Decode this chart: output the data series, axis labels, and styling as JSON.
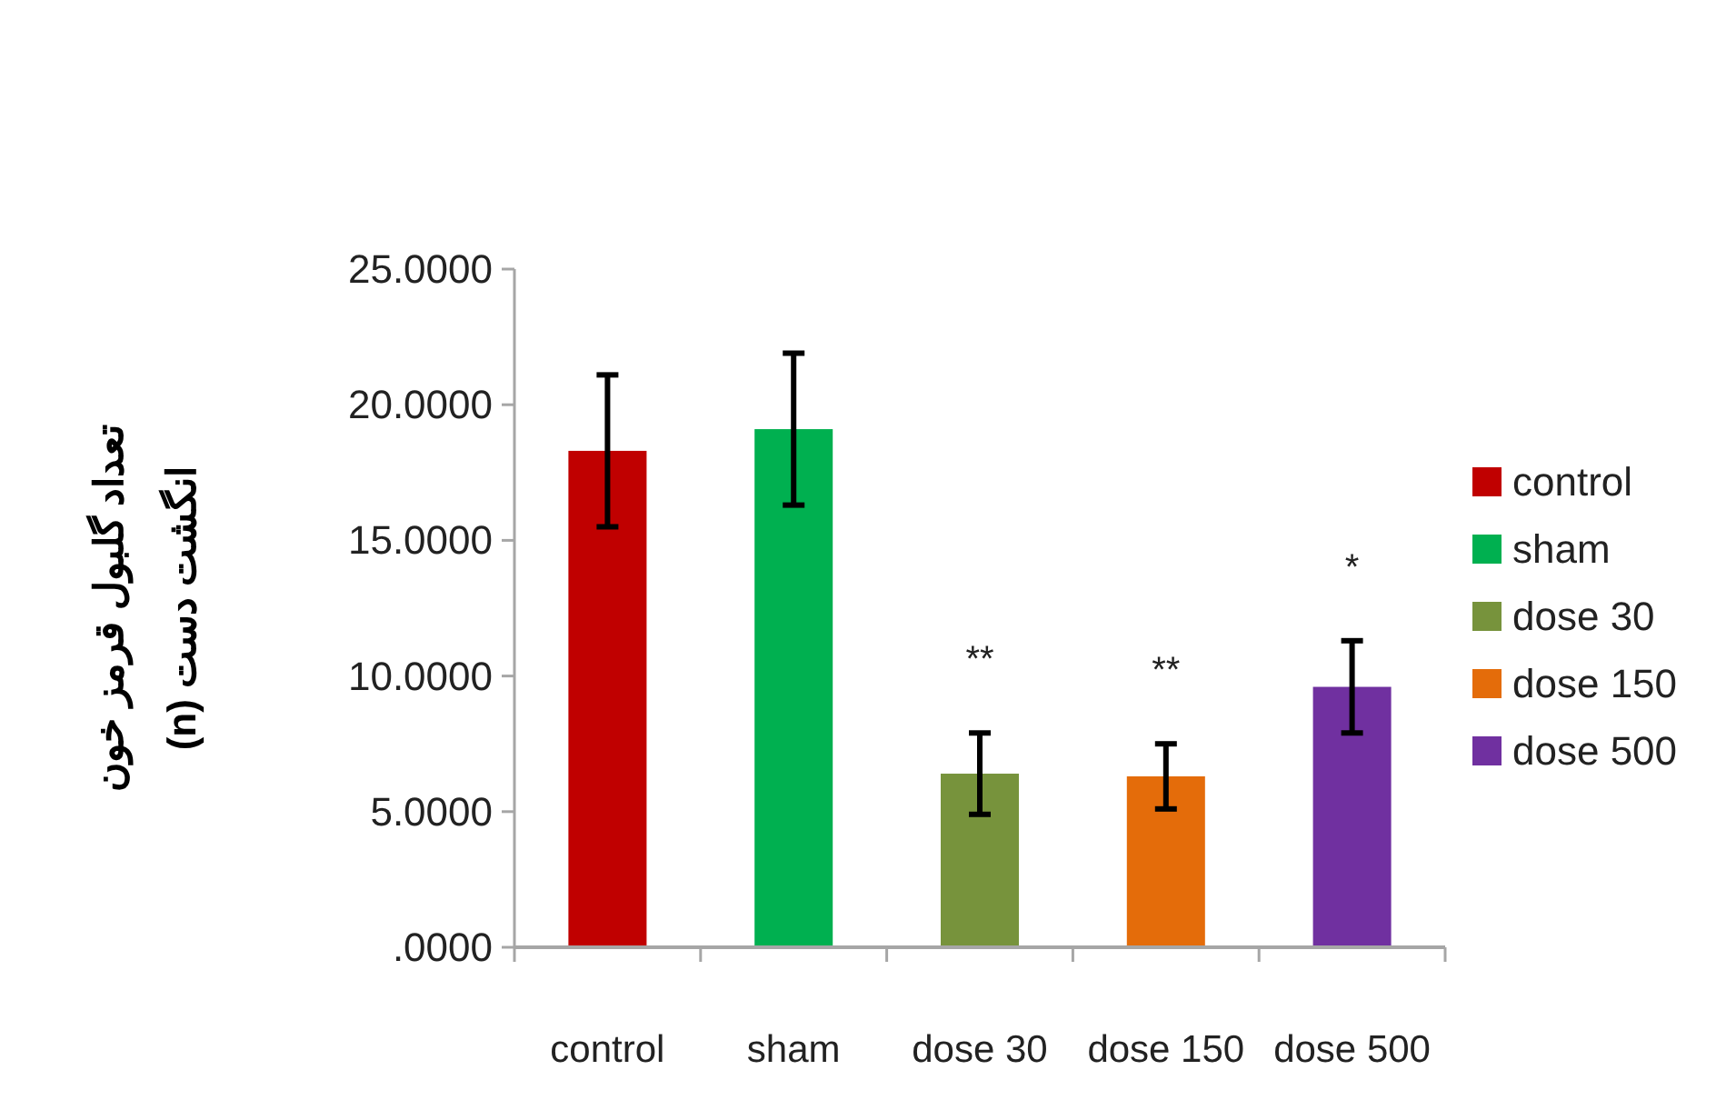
{
  "chart_data": {
    "type": "bar",
    "ylabel": "تعداد گلبول قرمز خون\nانگشت دست (n)",
    "categories": [
      "control",
      "sham",
      "dose 30",
      "dose 150",
      "dose 500"
    ],
    "series": [
      {
        "name": "control",
        "color": "#c00000",
        "values": [
          18.3,
          null,
          null,
          null,
          null
        ],
        "errors": [
          2.8,
          null,
          null,
          null,
          null
        ]
      },
      {
        "name": "sham",
        "color": "#00b050",
        "values": [
          null,
          19.1,
          null,
          null,
          null
        ],
        "errors": [
          null,
          2.8,
          null,
          null,
          null
        ]
      },
      {
        "name": "dose 30",
        "color": "#77933c",
        "values": [
          null,
          null,
          6.4,
          null,
          null
        ],
        "errors": [
          null,
          null,
          1.5,
          null,
          null
        ]
      },
      {
        "name": "dose 150",
        "color": "#e46c0a",
        "values": [
          null,
          null,
          null,
          6.3,
          null
        ],
        "errors": [
          null,
          null,
          null,
          1.2,
          null
        ]
      },
      {
        "name": "dose 500",
        "color": "#7030a0",
        "values": [
          null,
          null,
          null,
          null,
          9.6
        ],
        "errors": [
          null,
          null,
          null,
          null,
          1.7
        ]
      }
    ],
    "ylim": [
      0,
      25
    ],
    "yticks": [
      {
        "value": 0,
        "label": ".0000"
      },
      {
        "value": 5,
        "label": "5.0000"
      },
      {
        "value": 10,
        "label": "10.0000"
      },
      {
        "value": 15,
        "label": "15.0000"
      },
      {
        "value": 20,
        "label": "20.0000"
      },
      {
        "value": 25,
        "label": "25.0000"
      }
    ],
    "annotations": [
      "**",
      "**",
      "*"
    ],
    "legend": "right"
  }
}
